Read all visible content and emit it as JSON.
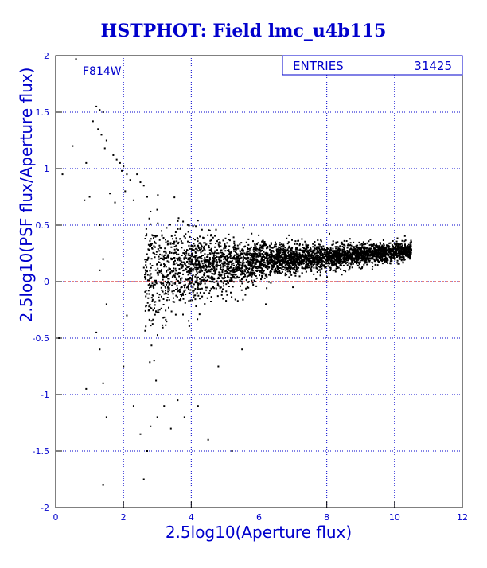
{
  "chart_data": {
    "type": "scatter",
    "title": "HSTPHOT: Field lmc_u4b115",
    "xlabel": "2.5log10(Aperture flux)",
    "ylabel": "2.5log10(PSF flux/Aperture flux)",
    "xlim": [
      0,
      12
    ],
    "ylim": [
      -2,
      2
    ],
    "x_ticks": [
      0,
      2,
      4,
      6,
      8,
      10,
      12
    ],
    "y_ticks": [
      -2,
      -1.5,
      -1,
      -0.5,
      0,
      0.5,
      1,
      1.5,
      2
    ],
    "grid": true,
    "filter_label": "F814W",
    "stats_box": {
      "label": "ENTRIES",
      "value": "31425"
    },
    "reference_line": {
      "y": 0,
      "color": "#cc0000"
    },
    "series": [
      {
        "points_description_only": false,
        "points": [
          [
            0.6,
            1.97
          ],
          [
            1.2,
            1.55
          ],
          [
            1.3,
            1.52
          ],
          [
            1.4,
            1.5
          ],
          [
            1.1,
            1.42
          ],
          [
            1.25,
            1.35
          ],
          [
            1.35,
            1.3
          ],
          [
            1.5,
            1.25
          ],
          [
            1.45,
            1.18
          ],
          [
            1.7,
            1.12
          ],
          [
            1.8,
            1.08
          ],
          [
            1.9,
            1.05
          ],
          [
            2.0,
            1.02
          ],
          [
            1.95,
            0.98
          ],
          [
            2.1,
            0.95
          ],
          [
            2.2,
            0.9
          ],
          [
            2.4,
            0.95
          ],
          [
            2.5,
            0.88
          ],
          [
            2.6,
            0.85
          ],
          [
            0.2,
            0.95
          ],
          [
            0.5,
            1.2
          ],
          [
            0.9,
            1.05
          ],
          [
            1.0,
            0.75
          ],
          [
            0.85,
            0.72
          ],
          [
            1.6,
            0.78
          ],
          [
            1.75,
            0.7
          ],
          [
            2.05,
            0.8
          ],
          [
            2.3,
            0.72
          ],
          [
            2.7,
            0.75
          ],
          [
            2.8,
            0.62
          ],
          [
            1.3,
            0.5
          ],
          [
            1.4,
            0.2
          ],
          [
            1.3,
            0.1
          ],
          [
            1.5,
            -0.2
          ],
          [
            1.2,
            -0.45
          ],
          [
            1.3,
            -0.6
          ],
          [
            1.4,
            -0.9
          ],
          [
            1.5,
            -1.2
          ],
          [
            1.4,
            -1.8
          ],
          [
            0.1,
            -0.5
          ],
          [
            0.9,
            -0.95
          ],
          [
            2.1,
            -0.3
          ],
          [
            2.0,
            -0.75
          ],
          [
            2.3,
            -1.1
          ],
          [
            2.5,
            -1.35
          ],
          [
            2.6,
            -1.75
          ],
          [
            2.7,
            -1.5
          ],
          [
            2.8,
            -1.28
          ],
          [
            3.0,
            -1.2
          ],
          [
            3.2,
            -1.1
          ],
          [
            3.4,
            -1.3
          ],
          [
            3.6,
            -1.05
          ],
          [
            3.8,
            -1.2
          ],
          [
            4.2,
            -1.1
          ],
          [
            4.5,
            -1.4
          ],
          [
            5.2,
            -1.5
          ],
          [
            6.2,
            -0.2
          ],
          [
            7.0,
            -0.05
          ],
          [
            5.5,
            -0.6
          ],
          [
            4.8,
            -0.75
          ]
        ]
      }
    ]
  }
}
